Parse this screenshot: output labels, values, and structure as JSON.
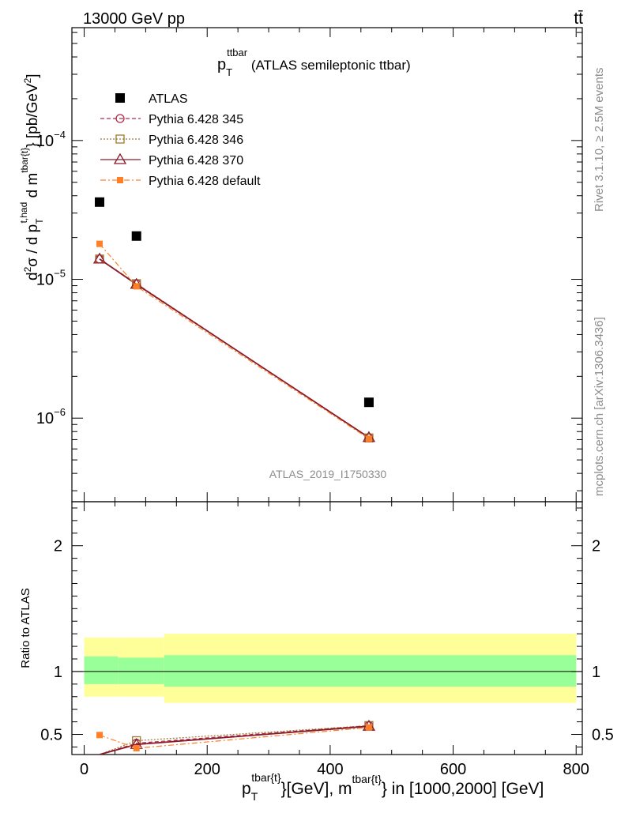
{
  "header": {
    "left": "13000 GeV pp",
    "right": "tt̄"
  },
  "side_labels": {
    "rivet": "Rivet 3.1.10, ≥ 2.5M events",
    "mcplots": "mcplots.cern.ch [arXiv:1306.3436]"
  },
  "main_panel": {
    "title_p": "p",
    "title_sub": "T",
    "title_sup": "ttbar",
    "title_rest": " (ATLAS semileptonic ttbar)",
    "analysis_id": "ATLAS_2019_I1750330",
    "y_axis_label": "d²σ / d p_T^{t,had} d m^{tbar{t}} [pb/GeV²]"
  },
  "ratio_panel": {
    "y_axis_label": "Ratio to ATLAS"
  },
  "x_axis_label": "p_T^{tbar{t}}[GeV], m^{tbar{t}} in [1000,2000] [GeV]",
  "legend": [
    {
      "label": "ATLAS",
      "color": "#000000",
      "marker": "square"
    },
    {
      "label": "Pythia 6.428 345",
      "color": "#b22a4a",
      "marker": "circle-open",
      "dash": "5,3"
    },
    {
      "label": "Pythia 6.428 346",
      "color": "#9b7a32",
      "marker": "square-open",
      "dash": "2,2"
    },
    {
      "label": "Pythia 6.428 370",
      "color": "#8b1a2a",
      "marker": "triangle-open",
      "dash": ""
    },
    {
      "label": "Pythia 6.428 default",
      "color": "#ff7f27",
      "marker": "square-filled",
      "dash": "7,3,2,3"
    }
  ],
  "chart_data": [
    {
      "type": "scatter",
      "panel": "main",
      "x_range": [
        -20,
        810
      ],
      "y_scale": "log",
      "y_range": [
        2.5e-07,
        0.00065
      ],
      "y_tick_labels": [
        "10^{-6}",
        "10^{-5}",
        "10^{-4}"
      ],
      "x_tick_labels": [
        "0",
        "200",
        "400",
        "600",
        "800"
      ],
      "series": [
        {
          "name": "ATLAS",
          "x": [
            25,
            85,
            463
          ],
          "y": [
            3.6e-05,
            2.05e-05,
            1.3e-06
          ]
        },
        {
          "name": "Pythia 6.428 345",
          "x": [
            25,
            85,
            463
          ],
          "y": [
            1.4e-05,
            9.3e-06,
            7.2e-07
          ]
        },
        {
          "name": "Pythia 6.428 346",
          "x": [
            25,
            85,
            463
          ],
          "y": [
            1.4e-05,
            9.3e-06,
            7.2e-07
          ]
        },
        {
          "name": "Pythia 6.428 370",
          "x": [
            25,
            85,
            463
          ],
          "y": [
            1.4e-05,
            9.2e-06,
            7.25e-07
          ]
        },
        {
          "name": "Pythia 6.428 default",
          "x": [
            25,
            85,
            463
          ],
          "y": [
            1.8e-05,
            8.9e-06,
            7.1e-07
          ]
        }
      ]
    },
    {
      "type": "line",
      "panel": "ratio",
      "x_range": [
        -20,
        810
      ],
      "y_range": [
        0.34,
        2.35
      ],
      "y_tick_labels": [
        "0.5",
        "1",
        "2"
      ],
      "reference_line": 1,
      "uncertainty_bands": {
        "bins": [
          [
            0,
            55
          ],
          [
            55,
            130
          ],
          [
            130,
            800
          ]
        ],
        "inner": [
          [
            0.9,
            1.12
          ],
          [
            0.9,
            1.11
          ],
          [
            0.88,
            1.13
          ]
        ],
        "outer": [
          [
            0.8,
            1.27
          ],
          [
            0.8,
            1.27
          ],
          [
            0.75,
            1.3
          ]
        ],
        "inner_color": "#99ff99",
        "outer_color": "#ffff99"
      },
      "series": [
        {
          "name": "Pythia 6.428 345",
          "x": [
            25,
            85,
            463
          ],
          "y": [
            0.34,
            0.43,
            0.57
          ]
        },
        {
          "name": "Pythia 6.428 346",
          "x": [
            25,
            85,
            463
          ],
          "y": [
            0.34,
            0.45,
            0.57
          ]
        },
        {
          "name": "Pythia 6.428 370",
          "x": [
            25,
            85,
            463
          ],
          "y": [
            0.34,
            0.42,
            0.565
          ]
        },
        {
          "name": "Pythia 6.428 default",
          "x": [
            25,
            85,
            463
          ],
          "y": [
            0.495,
            0.39,
            0.555
          ]
        }
      ]
    }
  ]
}
